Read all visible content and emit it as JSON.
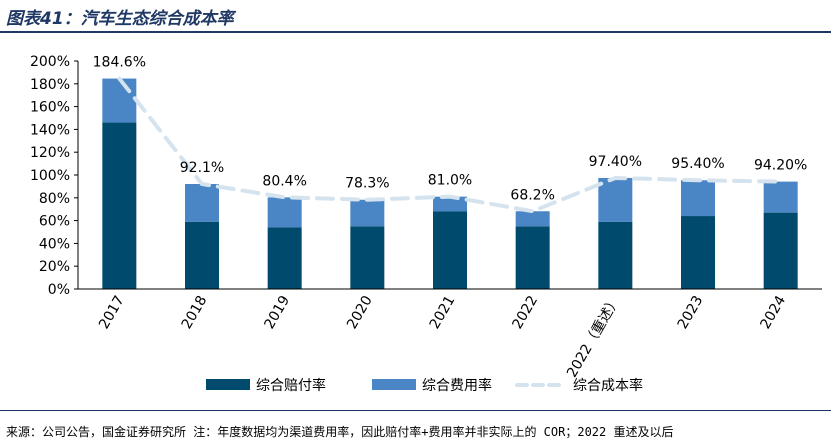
{
  "title": "图表41：汽车生态综合成本率",
  "source": "来源：公司公告，国金证券研究所 注：年度数据均为渠道费用率，因此赔付率+费用率并非实际上的 COR；2022 重述及以后",
  "colors": {
    "loss": "#004a6e",
    "expense": "#4a86c5",
    "combined": "#d5e3ef",
    "title": "#1f3864"
  },
  "chart_data": {
    "type": "bar",
    "stacked": true,
    "categories": [
      "2017",
      "2018",
      "2019",
      "2020",
      "2021",
      "2022",
      "2022（重述）",
      "2023",
      "2024"
    ],
    "series": [
      {
        "name": "综合赔付率",
        "values": [
          146,
          59,
          54,
          55,
          68,
          55,
          59,
          64,
          67
        ]
      },
      {
        "name": "综合费用率",
        "values": [
          38.6,
          33.1,
          26.4,
          23.3,
          13.0,
          13.2,
          38.4,
          31.4,
          27.2
        ]
      },
      {
        "name": "综合成本率",
        "type": "line",
        "dashed": true,
        "values": [
          184.6,
          92.1,
          80.4,
          78.3,
          81.0,
          68.2,
          97.4,
          95.4,
          94.2
        ]
      }
    ],
    "data_labels": [
      "184.6%",
      "92.1%",
      "80.4%",
      "78.3%",
      "81.0%",
      "68.2%",
      "97.40%",
      "95.40%",
      "94.20%"
    ],
    "yticks": [
      "0%",
      "20%",
      "40%",
      "60%",
      "80%",
      "100%",
      "120%",
      "140%",
      "160%",
      "180%",
      "200%"
    ],
    "ylim": [
      0,
      200
    ],
    "legend_position": "bottom",
    "grid": false
  }
}
